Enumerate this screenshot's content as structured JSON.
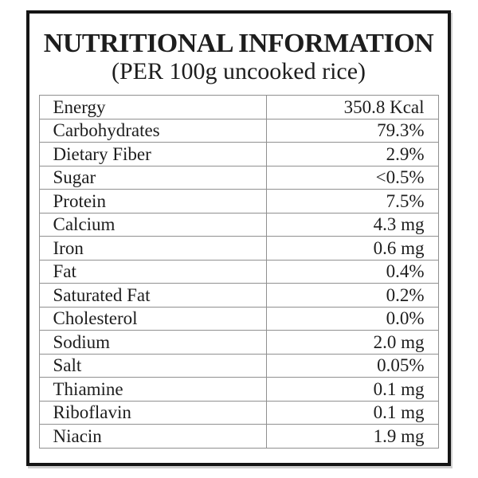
{
  "label": {
    "title": "NUTRITIONAL INFORMATION",
    "subtitle": "(PER 100g uncooked rice)",
    "rows": [
      {
        "name": "Energy",
        "value": "350.8 Kcal"
      },
      {
        "name": "Carbohydrates",
        "value": "79.3%"
      },
      {
        "name": "Dietary Fiber",
        "value": "2.9%"
      },
      {
        "name": "Sugar",
        "value": "<0.5%"
      },
      {
        "name": "Protein",
        "value": "7.5%"
      },
      {
        "name": "Calcium",
        "value": "4.3 mg"
      },
      {
        "name": "Iron",
        "value": "0.6 mg"
      },
      {
        "name": "Fat",
        "value": "0.4%"
      },
      {
        "name": "Saturated Fat",
        "value": "0.2%"
      },
      {
        "name": "Cholesterol",
        "value": "0.0%"
      },
      {
        "name": "Sodium",
        "value": "2.0 mg"
      },
      {
        "name": "Salt",
        "value": "0.05%"
      },
      {
        "name": "Thiamine",
        "value": "0.1 mg"
      },
      {
        "name": "Riboflavin",
        "value": "0.1 mg"
      },
      {
        "name": "Niacin",
        "value": "1.9 mg"
      }
    ],
    "colors": {
      "outer_border": "#151515",
      "row_border": "#909090",
      "text": "#1d1d1d",
      "background": "#ffffff"
    }
  }
}
